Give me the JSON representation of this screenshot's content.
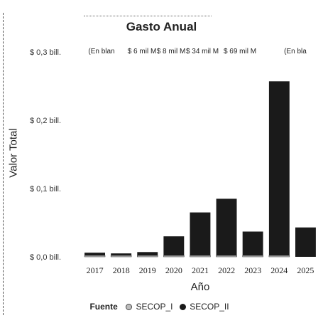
{
  "chart_data": {
    "type": "bar",
    "title": "Gasto Anual",
    "xlabel": "Año",
    "ylabel": "Valor Total",
    "categories": [
      "2017",
      "2018",
      "2019",
      "2020",
      "2021",
      "2022",
      "2023",
      "2024",
      "2025"
    ],
    "y_ticks": [
      {
        "value": 0.0,
        "label": "$ 0,0 bill."
      },
      {
        "value": 0.1,
        "label": "$ 0,1 bill."
      },
      {
        "value": 0.2,
        "label": "$ 0,2 bill."
      },
      {
        "value": 0.3,
        "label": "$ 0,3 bill."
      }
    ],
    "ylim": [
      0,
      0.3
    ],
    "series": [
      {
        "name": "SECOP_I",
        "values": [
          0.002,
          0.002,
          0.002,
          0.002,
          0.002,
          0.002,
          0.002,
          0.002,
          0.0
        ],
        "color": "#bdbdbd"
      },
      {
        "name": "SECOP_II",
        "values": [
          0.004,
          0.003,
          0.005,
          0.028,
          0.063,
          0.083,
          0.035,
          0.255,
          0.043
        ],
        "color": "#1a1a1a"
      }
    ],
    "data_labels": [
      "(En blan",
      "$ 6 mil M",
      "$ 8 mil M",
      "$ 34 mil M",
      "$ 69 mil M",
      "(En bla"
    ],
    "legend": {
      "title": "Fuente",
      "position": "bottom"
    },
    "grid": false
  }
}
